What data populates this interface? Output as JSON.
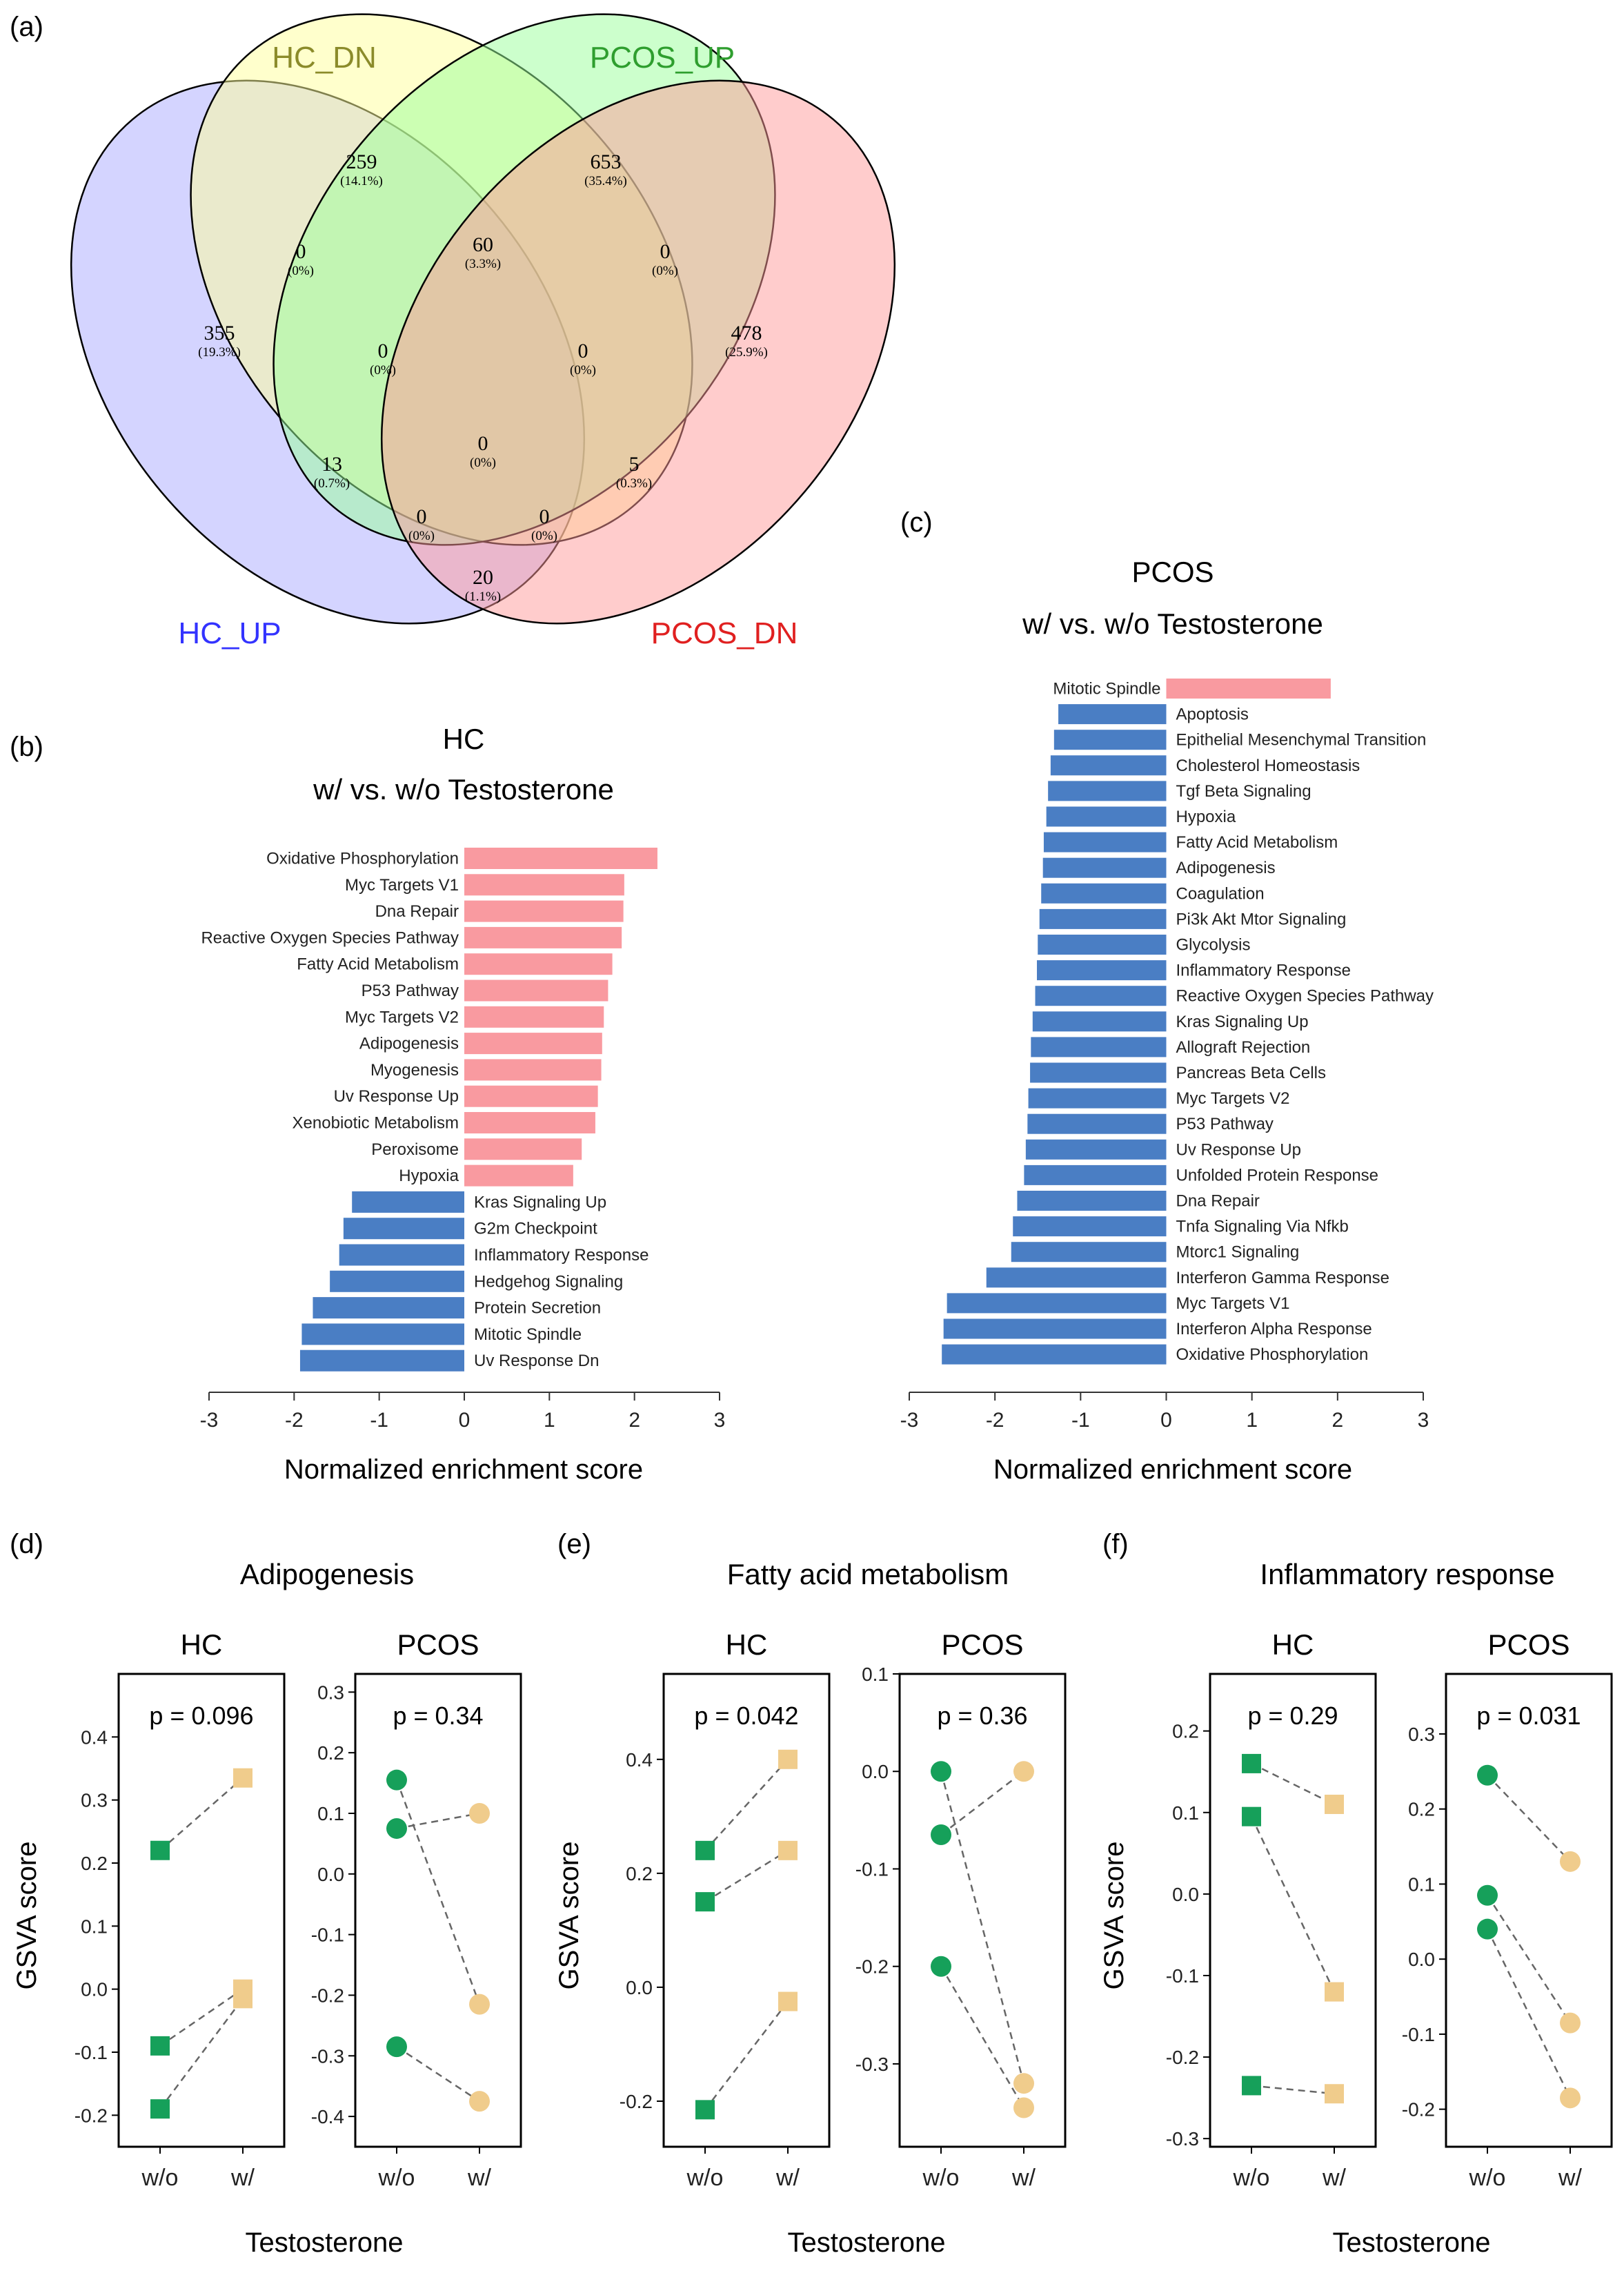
{
  "venn": {
    "panel_label": "(a)",
    "sets": [
      {
        "name": "HC_UP",
        "color": "#3333ff"
      },
      {
        "name": "HC_DN",
        "color": "#8b8b2a"
      },
      {
        "name": "PCOS_UP",
        "color": "#2e9e2e"
      },
      {
        "name": "PCOS_DN",
        "color": "#e02020"
      }
    ],
    "fill_colors": [
      "#aaaaff",
      "#ffff99",
      "#99ff99",
      "#ff9999"
    ],
    "regions": [
      {
        "id": "HC_DN_only",
        "count": "259",
        "pct": "(14.1%)"
      },
      {
        "id": "PCOS_UP_only",
        "count": "653",
        "pct": "(35.4%)"
      },
      {
        "id": "HC_UP_only",
        "count": "355",
        "pct": "(19.3%)"
      },
      {
        "id": "PCOS_DN_only",
        "count": "478",
        "pct": "(25.9%)"
      },
      {
        "id": "HC_UP__HC_DN",
        "count": "0",
        "pct": "(0%)"
      },
      {
        "id": "HC_DN__PCOS_UP",
        "count": "60",
        "pct": "(3.3%)"
      },
      {
        "id": "PCOS_UP__PCOS_DN",
        "count": "0",
        "pct": "(0%)"
      },
      {
        "id": "HC_UP__HC_DN__PCOS_UP",
        "count": "0",
        "pct": "(0%)"
      },
      {
        "id": "HC_DN__PCOS_UP__PCOS_DN",
        "count": "0",
        "pct": "(0%)"
      },
      {
        "id": "HC_UP__PCOS_UP",
        "count": "13",
        "pct": "(0.7%)"
      },
      {
        "id": "all_four",
        "count": "0",
        "pct": "(0%)"
      },
      {
        "id": "HC_DN__PCOS_DN",
        "count": "5",
        "pct": "(0.3%)"
      },
      {
        "id": "HC_UP__PCOS_UP__PCOS_DN",
        "count": "0",
        "pct": "(0%)"
      },
      {
        "id": "HC_UP__HC_DN__PCOS_DN",
        "count": "0",
        "pct": "(0%)"
      },
      {
        "id": "HC_UP__PCOS_DN",
        "count": "20",
        "pct": "(1.1%)"
      }
    ]
  },
  "chart_data": [
    {
      "panel": "(b)",
      "type": "bar",
      "orientation": "horizontal",
      "title_line1": "HC",
      "title_line2": "w/ vs. w/o Testosterone",
      "xlabel": "Normalized enrichment score",
      "xlim": [
        -3,
        3
      ],
      "xticks": [
        "-3",
        "-2",
        "-1",
        "0",
        "1",
        "2",
        "3"
      ],
      "pos_color": "#f99aa0",
      "neg_color": "#4a7ec4",
      "categories": [
        "Oxidative Phosphorylation",
        "Myc Targets V1",
        "Dna Repair",
        "Reactive Oxygen Species Pathway",
        "Fatty Acid Metabolism",
        "P53 Pathway",
        "Myc Targets V2",
        "Adipogenesis",
        "Myogenesis",
        "Uv Response Up",
        "Xenobiotic Metabolism",
        "Peroxisome",
        "Hypoxia",
        "Kras Signaling Up",
        "G2m Checkpoint",
        "Inflammatory Response",
        "Hedgehog Signaling",
        "Protein Secretion",
        "Mitotic Spindle",
        "Uv Response Dn"
      ],
      "values": [
        2.27,
        1.88,
        1.87,
        1.85,
        1.74,
        1.69,
        1.64,
        1.62,
        1.61,
        1.57,
        1.54,
        1.38,
        1.28,
        -1.32,
        -1.42,
        -1.47,
        -1.58,
        -1.78,
        -1.91,
        -1.93
      ]
    },
    {
      "panel": "(c)",
      "type": "bar",
      "orientation": "horizontal",
      "title_line1": "PCOS",
      "title_line2": "w/ vs. w/o Testosterone",
      "xlabel": "Normalized enrichment score",
      "xlim": [
        -3,
        3
      ],
      "xticks": [
        "-3",
        "-2",
        "-1",
        "0",
        "1",
        "2",
        "3"
      ],
      "pos_color": "#f99aa0",
      "neg_color": "#4a7ec4",
      "categories": [
        "Mitotic Spindle",
        "Apoptosis",
        "Epithelial Mesenchymal Transition",
        "Cholesterol Homeostasis",
        "Tgf Beta Signaling",
        "Hypoxia",
        "Fatty Acid Metabolism",
        "Adipogenesis",
        "Coagulation",
        "Pi3k Akt Mtor Signaling",
        "Glycolysis",
        "Inflammatory Response",
        "Reactive Oxygen Species Pathway",
        "Kras Signaling Up",
        "Allograft Rejection",
        "Pancreas Beta Cells",
        "Myc Targets V2",
        "P53 Pathway",
        "Uv Response Up",
        "Unfolded Protein Response",
        "Dna Repair",
        "Tnfa Signaling Via Nfkb",
        "Mtorc1 Signaling",
        "Interferon Gamma Response",
        "Myc Targets V1",
        "Interferon Alpha Response",
        "Oxidative Phosphorylation"
      ],
      "values": [
        1.92,
        -1.26,
        -1.31,
        -1.35,
        -1.38,
        -1.4,
        -1.43,
        -1.44,
        -1.46,
        -1.48,
        -1.5,
        -1.51,
        -1.53,
        -1.56,
        -1.58,
        -1.59,
        -1.61,
        -1.62,
        -1.64,
        -1.66,
        -1.74,
        -1.79,
        -1.81,
        -2.1,
        -2.56,
        -2.6,
        -2.62
      ]
    },
    {
      "panel": "(d)",
      "type": "scatter",
      "title": "Adipogenesis",
      "ylabel": "GSVA score",
      "xlabel": "Testosterone",
      "subplots": [
        {
          "group": "HC",
          "pvalue": "p = 0.096",
          "marker": "square",
          "ylim": [
            -0.25,
            0.5
          ],
          "yticks": [
            -0.2,
            -0.1,
            0.0,
            0.1,
            0.2,
            0.3,
            0.4
          ],
          "ytick_labels": [
            "-0.2",
            "-0.1",
            "0.0",
            "0.1",
            "0.2",
            "0.3",
            "0.4"
          ],
          "x": [
            "w/o",
            "w/"
          ],
          "pairs": [
            [
              0.22,
              0.335
            ],
            [
              -0.09,
              0.0
            ],
            [
              -0.19,
              -0.015
            ]
          ]
        },
        {
          "group": "PCOS",
          "pvalue": "p = 0.34",
          "marker": "circle",
          "ylim": [
            -0.45,
            0.33
          ],
          "yticks": [
            -0.4,
            -0.3,
            -0.2,
            -0.1,
            0.0,
            0.1,
            0.2,
            0.3
          ],
          "ytick_labels": [
            "-0.4",
            "-0.3",
            "-0.2",
            "-0.1",
            "0.0",
            "0.1",
            "0.2",
            "0.3"
          ],
          "x": [
            "w/o",
            "w/"
          ],
          "pairs": [
            [
              0.155,
              -0.215
            ],
            [
              0.075,
              0.1
            ],
            [
              -0.285,
              -0.375
            ]
          ]
        }
      ]
    },
    {
      "panel": "(e)",
      "type": "scatter",
      "title": "Fatty acid metabolism",
      "ylabel": "GSVA score",
      "xlabel": "Testosterone",
      "subplots": [
        {
          "group": "HC",
          "pvalue": "p = 0.042",
          "marker": "square",
          "ylim": [
            -0.28,
            0.55
          ],
          "yticks": [
            -0.2,
            0.0,
            0.2,
            0.4
          ],
          "ytick_labels": [
            "-0.2",
            "0.0",
            "0.2",
            "0.4"
          ],
          "x": [
            "w/o",
            "w/"
          ],
          "pairs": [
            [
              0.24,
              0.4
            ],
            [
              0.15,
              0.24
            ],
            [
              -0.215,
              -0.025
            ]
          ]
        },
        {
          "group": "PCOS",
          "pvalue": "p = 0.36",
          "marker": "circle",
          "ylim": [
            -0.385,
            0.1
          ],
          "yticks": [
            -0.3,
            -0.2,
            -0.1,
            0.0,
            0.1
          ],
          "ytick_labels": [
            "-0.3",
            "-0.2",
            "-0.1",
            "0.0",
            "0.1"
          ],
          "x": [
            "w/o",
            "w/"
          ],
          "pairs": [
            [
              0.0,
              -0.32
            ],
            [
              -0.065,
              0.0
            ],
            [
              -0.2,
              -0.345
            ]
          ]
        }
      ]
    },
    {
      "panel": "(f)",
      "type": "scatter",
      "title": "Inflammatory response",
      "ylabel": "GSVA score",
      "xlabel": "Testosterone",
      "subplots": [
        {
          "group": "HC",
          "pvalue": "p = 0.29",
          "marker": "square",
          "ylim": [
            -0.31,
            0.27
          ],
          "yticks": [
            -0.3,
            -0.2,
            -0.1,
            0.0,
            0.1,
            0.2
          ],
          "ytick_labels": [
            "-0.3",
            "-0.2",
            "-0.1",
            "0.0",
            "0.1",
            "0.2"
          ],
          "x": [
            "w/o",
            "w/"
          ],
          "pairs": [
            [
              0.16,
              0.11
            ],
            [
              0.095,
              -0.12
            ],
            [
              -0.235,
              -0.245
            ]
          ]
        },
        {
          "group": "PCOS",
          "pvalue": "p = 0.031",
          "marker": "circle",
          "ylim": [
            -0.25,
            0.38
          ],
          "yticks": [
            -0.2,
            -0.1,
            0.0,
            0.1,
            0.2,
            0.3
          ],
          "ytick_labels": [
            "-0.2",
            "-0.1",
            "0.0",
            "0.1",
            "0.2",
            "0.3"
          ],
          "x": [
            "w/o",
            "w/"
          ],
          "pairs": [
            [
              0.245,
              0.13
            ],
            [
              0.085,
              -0.085
            ],
            [
              0.04,
              -0.185
            ]
          ]
        }
      ]
    }
  ],
  "colors": {
    "wo_marker": "#16a05a",
    "w_marker": "#f0cc8c",
    "line": "#666666"
  }
}
